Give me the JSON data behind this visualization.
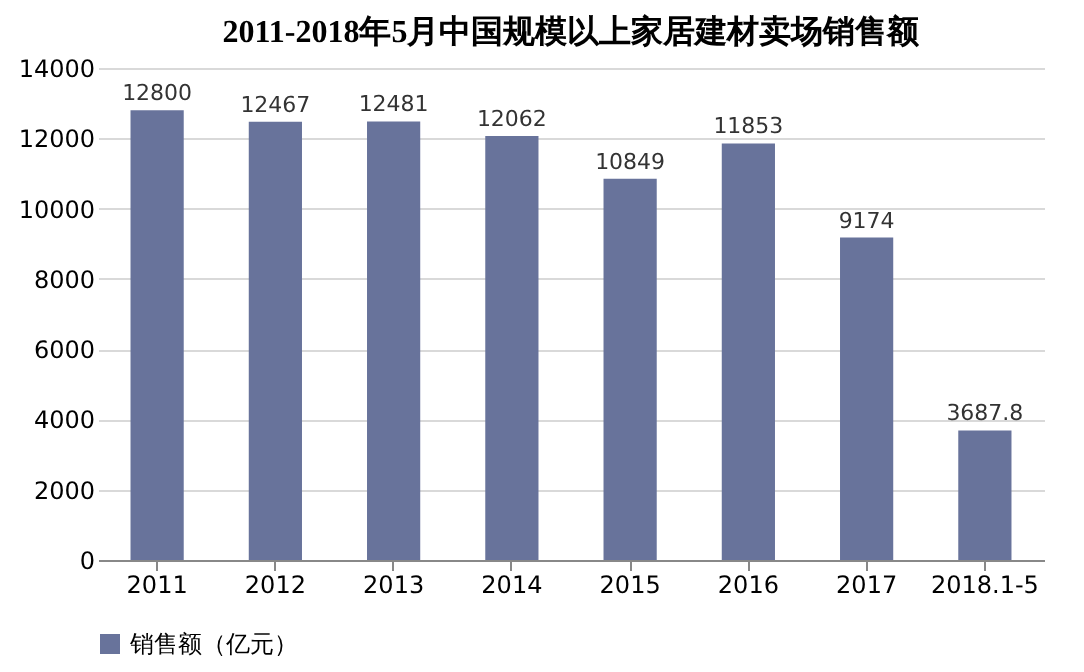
{
  "chart_data": {
    "type": "bar",
    "title": "2011-2018年5月中国规模以上家居建材卖场销售额",
    "categories": [
      "2011",
      "2012",
      "2013",
      "2014",
      "2015",
      "2016",
      "2017",
      "2018.1-5"
    ],
    "series": [
      {
        "name": "销售额（亿元）",
        "color": "#68739b",
        "values": [
          12800,
          12467,
          12481,
          12062,
          10849,
          11853,
          9174,
          3687.8
        ]
      }
    ],
    "ylim": [
      0,
      14000
    ],
    "yticks": [
      0,
      2000,
      4000,
      6000,
      8000,
      10000,
      12000,
      14000
    ],
    "grid": "y",
    "legend": "bottom",
    "data_labels": true
  }
}
